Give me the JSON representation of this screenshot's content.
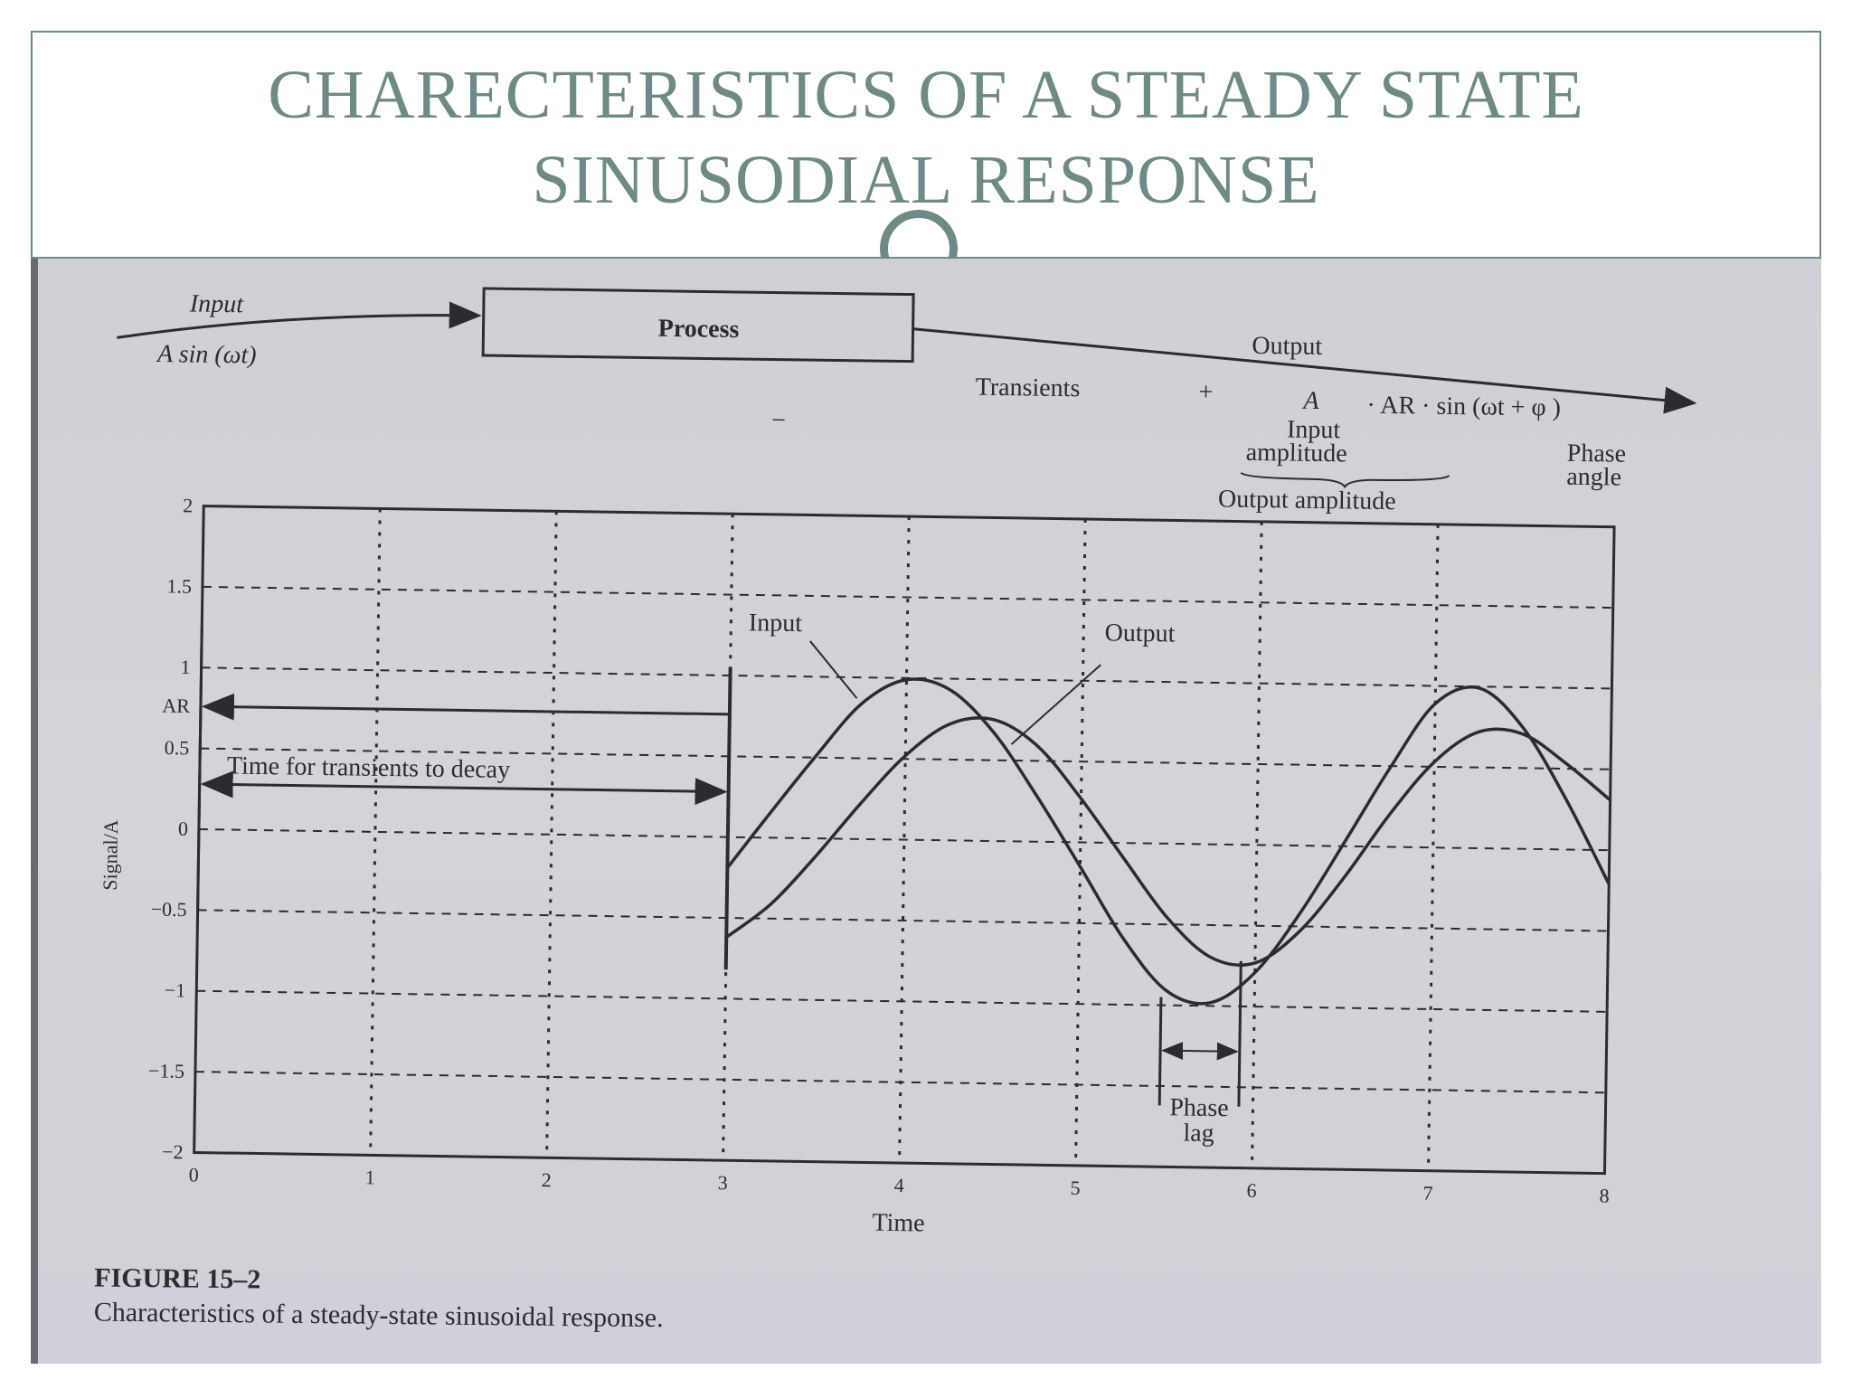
{
  "slide": {
    "title_line1": "CHARECTERISTICS OF A STEADY STATE",
    "title_line2": "SINUSODIAL RESPONSE"
  },
  "diagram": {
    "input_label": "Input",
    "input_formula": "A sin (ωt)",
    "process_label": "Process",
    "output_label": "Output",
    "transients_label": "Transients",
    "plus_sign": "+",
    "minus_sign": "−",
    "amp_symbol": "A",
    "formula_rest": "· AR · sin (ωt + φ )",
    "input_amplitude_line1": "Input",
    "input_amplitude_line2": "amplitude",
    "phase_angle_line1": "Phase",
    "phase_angle_line2": "angle",
    "output_amplitude": "Output amplitude"
  },
  "chart_data": {
    "type": "line",
    "xlabel": "Time",
    "ylabel": "Signal/A",
    "xlim": [
      0,
      8
    ],
    "ylim": [
      -2,
      2
    ],
    "x_ticks": [
      "0",
      "1",
      "2",
      "3",
      "4",
      "5",
      "6",
      "7",
      "8"
    ],
    "y_ticks": [
      "2",
      "1.5",
      "1",
      "0.5",
      "0",
      "−0.5",
      "−1",
      "−1.5",
      "−2"
    ],
    "ar_tick_label": "AR",
    "ar_value": 0.76,
    "grid": true,
    "series": [
      {
        "name": "Input",
        "x": [
          3.0,
          3.25,
          3.5,
          3.75,
          4.0,
          4.25,
          4.5,
          4.75,
          5.0,
          5.25,
          5.5,
          5.75,
          6.0,
          6.25,
          6.5,
          6.75,
          7.0,
          7.25,
          7.5,
          7.75,
          8.0
        ],
        "y": [
          -0.19,
          0.17,
          0.52,
          0.84,
          0.99,
          0.93,
          0.67,
          0.28,
          -0.15,
          -0.59,
          -0.91,
          -0.98,
          -0.79,
          -0.42,
          0.03,
          0.49,
          0.89,
          0.99,
          0.75,
          0.31,
          -0.21
        ]
      },
      {
        "name": "Output",
        "x": [
          3.0,
          3.25,
          3.5,
          3.75,
          4.0,
          4.25,
          4.5,
          4.75,
          5.0,
          5.25,
          5.5,
          5.75,
          6.0,
          6.25,
          6.5,
          6.75,
          7.0,
          7.25,
          7.5,
          7.75,
          8.0
        ],
        "y": [
          -0.62,
          -0.41,
          -0.11,
          0.22,
          0.52,
          0.72,
          0.75,
          0.59,
          0.27,
          -0.1,
          -0.46,
          -0.7,
          -0.73,
          -0.53,
          -0.19,
          0.2,
          0.53,
          0.72,
          0.71,
          0.53,
          0.31
        ]
      }
    ],
    "annotations": {
      "input_label": "Input",
      "output_label": "Output",
      "transient_text": "Time for transients to decay",
      "transient_end_x": 3.0,
      "phase_lag_line1": "Phase",
      "phase_lag_line2": "lag",
      "phase_lag_from_x": 5.47,
      "phase_lag_to_x": 5.92
    },
    "caption_label": "FIGURE 15–2",
    "caption_text": "Characteristics of a steady-state sinusoidal response."
  },
  "colors": {
    "title": "#6d8a85",
    "ink": "#2c2c30",
    "paper": "#d0d1d6"
  }
}
